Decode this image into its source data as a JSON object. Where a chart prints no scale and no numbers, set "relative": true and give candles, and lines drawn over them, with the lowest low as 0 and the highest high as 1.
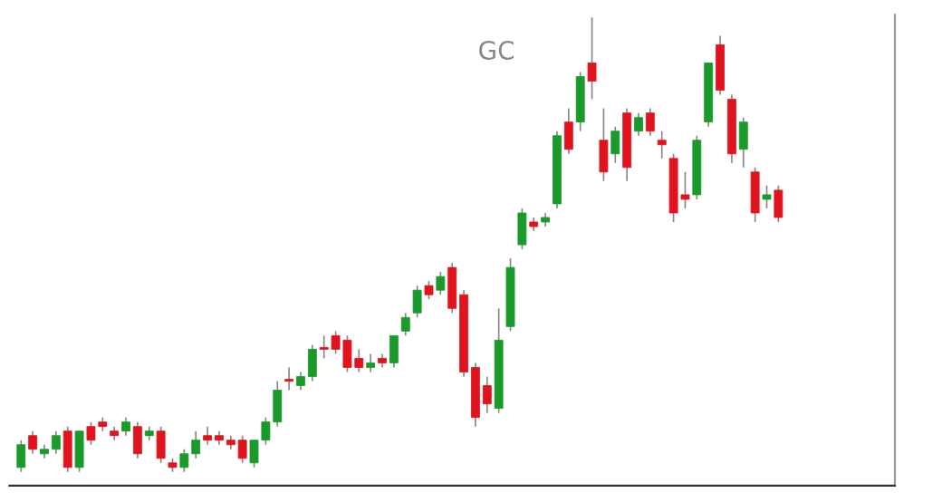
{
  "chart_data": {
    "type": "candlestick",
    "title": "GC",
    "relative": true,
    "categories": [
      null,
      null,
      null,
      null,
      null,
      null,
      null,
      null,
      null,
      null,
      null,
      null,
      null,
      null,
      null,
      null,
      null,
      null,
      null,
      null,
      null,
      null,
      null,
      null,
      null,
      null,
      null,
      null,
      null,
      null,
      null,
      null,
      null,
      null,
      null,
      null,
      null,
      null,
      null,
      null,
      null,
      null,
      null,
      null,
      null,
      null,
      null,
      null,
      null,
      null,
      null,
      null,
      null,
      null,
      null,
      null,
      null,
      null,
      null,
      null,
      null,
      null,
      null,
      null,
      null,
      null
    ],
    "ohlc": [
      [
        0.01,
        0.07,
        0.0,
        0.06
      ],
      [
        0.08,
        0.09,
        0.04,
        0.05
      ],
      [
        0.04,
        0.06,
        0.03,
        0.05
      ],
      [
        0.05,
        0.09,
        0.04,
        0.08
      ],
      [
        0.09,
        0.1,
        0.0,
        0.01
      ],
      [
        0.01,
        0.09,
        0.0,
        0.09
      ],
      [
        0.1,
        0.11,
        0.06,
        0.07
      ],
      [
        0.11,
        0.12,
        0.09,
        0.1
      ],
      [
        0.09,
        0.1,
        0.07,
        0.08
      ],
      [
        0.09,
        0.12,
        0.08,
        0.11
      ],
      [
        0.1,
        0.11,
        0.03,
        0.04
      ],
      [
        0.08,
        0.1,
        0.07,
        0.09
      ],
      [
        0.09,
        0.1,
        0.02,
        0.03
      ],
      [
        0.02,
        0.03,
        0.0,
        0.01
      ],
      [
        0.01,
        0.05,
        0.0,
        0.04
      ],
      [
        0.04,
        0.09,
        0.03,
        0.07
      ],
      [
        0.08,
        0.1,
        0.06,
        0.07
      ],
      [
        0.08,
        0.09,
        0.06,
        0.07
      ],
      [
        0.07,
        0.08,
        0.05,
        0.06
      ],
      [
        0.07,
        0.08,
        0.02,
        0.03
      ],
      [
        0.02,
        0.07,
        0.01,
        0.07
      ],
      [
        0.07,
        0.12,
        0.06,
        0.11
      ],
      [
        0.11,
        0.2,
        0.1,
        0.18
      ],
      [
        0.2,
        0.23,
        0.18,
        0.2
      ],
      [
        0.19,
        0.22,
        0.18,
        0.21
      ],
      [
        0.21,
        0.28,
        0.2,
        0.27
      ],
      [
        0.27,
        0.3,
        0.25,
        0.27
      ],
      [
        0.3,
        0.31,
        0.26,
        0.27
      ],
      [
        0.29,
        0.3,
        0.22,
        0.23
      ],
      [
        0.25,
        0.27,
        0.22,
        0.23
      ],
      [
        0.23,
        0.26,
        0.22,
        0.24
      ],
      [
        0.25,
        0.26,
        0.23,
        0.24
      ],
      [
        0.24,
        0.3,
        0.23,
        0.3
      ],
      [
        0.31,
        0.35,
        0.3,
        0.34
      ],
      [
        0.35,
        0.41,
        0.34,
        0.4
      ],
      [
        0.41,
        0.42,
        0.38,
        0.39
      ],
      [
        0.4,
        0.44,
        0.39,
        0.43
      ],
      [
        0.45,
        0.46,
        0.35,
        0.36
      ],
      [
        0.39,
        0.4,
        0.21,
        0.22
      ],
      [
        0.23,
        0.24,
        0.1,
        0.12
      ],
      [
        0.19,
        0.21,
        0.13,
        0.15
      ],
      [
        0.14,
        0.36,
        0.13,
        0.29
      ],
      [
        0.32,
        0.47,
        0.31,
        0.45
      ],
      [
        0.5,
        0.58,
        0.49,
        0.57
      ],
      [
        0.55,
        0.56,
        0.53,
        0.54
      ],
      [
        0.55,
        0.57,
        0.54,
        0.56
      ],
      [
        0.59,
        0.75,
        0.58,
        0.74
      ],
      [
        0.77,
        0.8,
        0.7,
        0.71
      ],
      [
        0.77,
        0.88,
        0.75,
        0.87
      ],
      [
        0.9,
        1.0,
        0.82,
        0.86
      ],
      [
        0.73,
        0.8,
        0.64,
        0.66
      ],
      [
        0.7,
        0.76,
        0.68,
        0.75
      ],
      [
        0.79,
        0.8,
        0.64,
        0.67
      ],
      [
        0.75,
        0.79,
        0.74,
        0.78
      ],
      [
        0.79,
        0.8,
        0.74,
        0.75
      ],
      [
        0.73,
        0.75,
        0.69,
        0.72
      ],
      [
        0.69,
        0.7,
        0.55,
        0.57
      ],
      [
        0.61,
        0.66,
        0.58,
        0.6
      ],
      [
        0.61,
        0.74,
        0.6,
        0.73
      ],
      [
        0.77,
        0.9,
        0.76,
        0.9
      ],
      [
        0.94,
        0.96,
        0.83,
        0.84
      ],
      [
        0.82,
        0.83,
        0.68,
        0.7
      ],
      [
        0.71,
        0.78,
        0.67,
        0.77
      ],
      [
        0.66,
        0.67,
        0.55,
        0.57
      ],
      [
        0.6,
        0.63,
        0.58,
        0.61
      ],
      [
        0.62,
        0.63,
        0.55,
        0.56
      ]
    ],
    "colors": [
      "#1a9a2a",
      "#e0141e",
      "#1a9a2a",
      "#1a9a2a",
      "#e0141e",
      "#1a9a2a",
      "#e0141e",
      "#e0141e",
      "#e0141e",
      "#1a9a2a",
      "#e0141e",
      "#1a9a2a",
      "#e0141e",
      "#e0141e",
      "#1a9a2a",
      "#1a9a2a",
      "#e0141e",
      "#e0141e",
      "#e0141e",
      "#e0141e",
      "#1a9a2a",
      "#1a9a2a",
      "#1a9a2a",
      "#e0141e",
      "#1a9a2a",
      "#1a9a2a",
      "#e0141e",
      "#e0141e",
      "#e0141e",
      "#e0141e",
      "#1a9a2a",
      "#e0141e",
      "#1a9a2a",
      "#1a9a2a",
      "#1a9a2a",
      "#e0141e",
      "#1a9a2a",
      "#e0141e",
      "#e0141e",
      "#e0141e",
      "#e0141e",
      "#1a9a2a",
      "#1a9a2a",
      "#1a9a2a",
      "#e0141e",
      "#1a9a2a",
      "#1a9a2a",
      "#e0141e",
      "#1a9a2a",
      "#e0141e",
      "#e0141e",
      "#1a9a2a",
      "#e0141e",
      "#1a9a2a",
      "#e0141e",
      "#e0141e",
      "#e0141e",
      "#e0141e",
      "#1a9a2a",
      "#1a9a2a",
      "#e0141e",
      "#e0141e",
      "#1a9a2a",
      "#e0141e",
      "#1a9a2a",
      "#e0141e"
    ]
  }
}
